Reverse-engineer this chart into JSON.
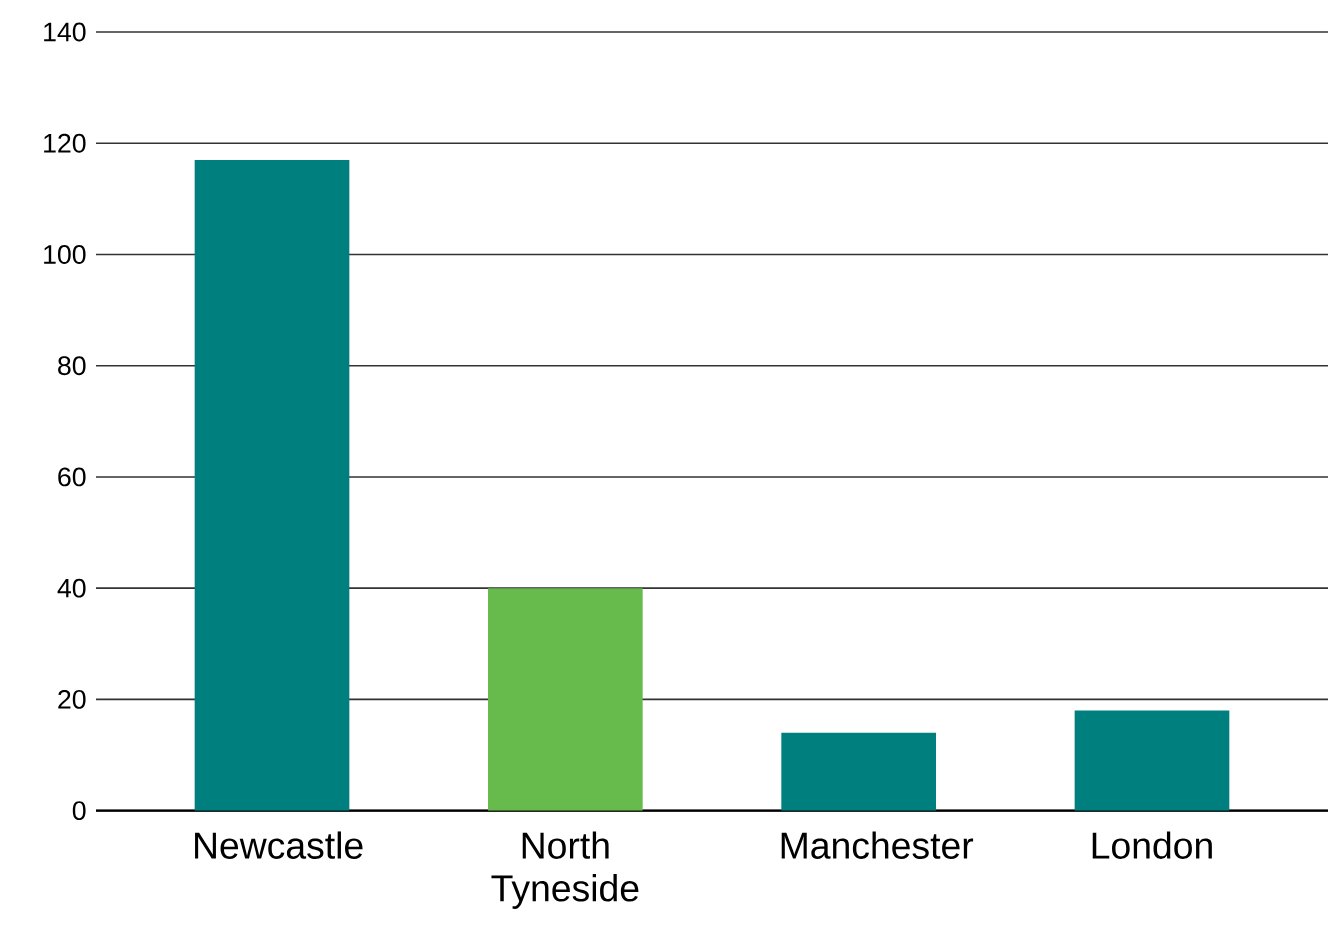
{
  "chart_data": {
    "type": "bar",
    "categories": [
      "Newcastle",
      "North Tyneside",
      "Manchester",
      "London"
    ],
    "values": [
      117,
      40,
      14,
      18
    ],
    "colors": [
      "#007f7f",
      "#66bb4c",
      "#007f7f",
      "#007f7f"
    ],
    "ylim": [
      0,
      140
    ],
    "yticks": [
      0,
      20,
      40,
      60,
      80,
      100,
      120,
      140
    ],
    "grid": "y"
  }
}
